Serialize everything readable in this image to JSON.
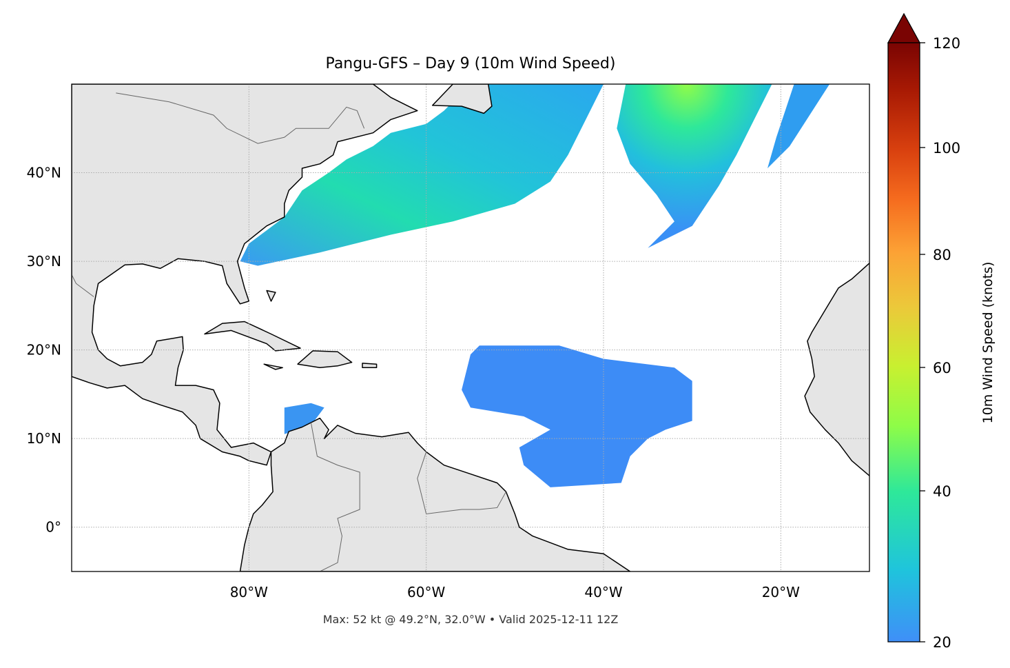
{
  "title": "Pangu-GFS – Day 9 (10m Wind Speed)",
  "footer": "Max: 52 kt @ 49.2°N, 32.0°W • Valid 2025-12-11 12Z",
  "map": {
    "extent": {
      "lon_min": -100,
      "lon_max": -10,
      "lat_min": -5,
      "lat_max": 50
    },
    "lon_ticks": [
      {
        "value": -80,
        "label": "80°W"
      },
      {
        "value": -60,
        "label": "60°W"
      },
      {
        "value": -40,
        "label": "40°W"
      },
      {
        "value": -20,
        "label": "20°W"
      }
    ],
    "lat_ticks": [
      {
        "value": 40,
        "label": "40°N"
      },
      {
        "value": 30,
        "label": "30°N"
      },
      {
        "value": 20,
        "label": "20°N"
      },
      {
        "value": 10,
        "label": "10°N"
      },
      {
        "value": 0,
        "label": "0°"
      }
    ],
    "land_color": "#e5e5e5",
    "gridlines": "dotted"
  },
  "colorbar": {
    "label": "10m Wind Speed (knots)",
    "ticks": [
      "20",
      "40",
      "60",
      "80",
      "100",
      "120"
    ],
    "extend": "max",
    "colormap": "turbo",
    "colors": [
      "#3f8ff8",
      "#1fc4dc",
      "#2ee89a",
      "#c8f030",
      "#fca235",
      "#d9410f",
      "#7a0403"
    ]
  },
  "max_wind": {
    "value_kt": 52,
    "lat": 49.2,
    "lon": -32.0
  }
}
